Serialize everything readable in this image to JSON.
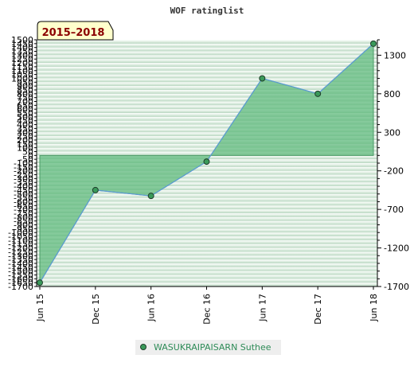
{
  "chart_data": {
    "type": "area",
    "title": "WOF ratinglist",
    "period_badge": "2015–2018",
    "x": [
      "Jun 15",
      "Dec 15",
      "Jun 16",
      "Dec 16",
      "Jun 17",
      "Dec 17",
      "Jun 18"
    ],
    "series": [
      {
        "name": "WASUKRAIPAISARN Suthee",
        "values": [
          -1650,
          -450,
          -525,
          -80,
          1000,
          800,
          1450
        ]
      }
    ],
    "ylim": [
      -1700,
      1500
    ],
    "left_ticks": [
      1500,
      1450,
      1400,
      1350,
      1300,
      1250,
      1200,
      1150,
      1100,
      1050,
      1000,
      950,
      900,
      850,
      800,
      750,
      700,
      650,
      600,
      550,
      500,
      450,
      400,
      350,
      300,
      250,
      200,
      150,
      100,
      50,
      0,
      -50,
      -100,
      -150,
      -200,
      -250,
      -300,
      -350,
      -400,
      -450,
      -500,
      -550,
      -600,
      -650,
      -700,
      -750,
      -800,
      -850,
      -900,
      -950,
      -1000,
      -1050,
      -1100,
      -1150,
      -1200,
      -1250,
      -1300,
      -1350,
      -1400,
      -1450,
      -1500,
      -1550,
      -1600,
      -1650,
      -1700
    ],
    "right_ticks": [
      1300,
      800,
      300,
      -200,
      -700,
      -1200,
      -1700
    ],
    "grid": true,
    "legend_position": "bottom-center",
    "colors": {
      "fill": "#5cb87a",
      "line": "#5b9bd5",
      "marker": "#3a9a5a",
      "badge_bg": "#ffffcc",
      "legend_text": "#2e8b57"
    }
  }
}
